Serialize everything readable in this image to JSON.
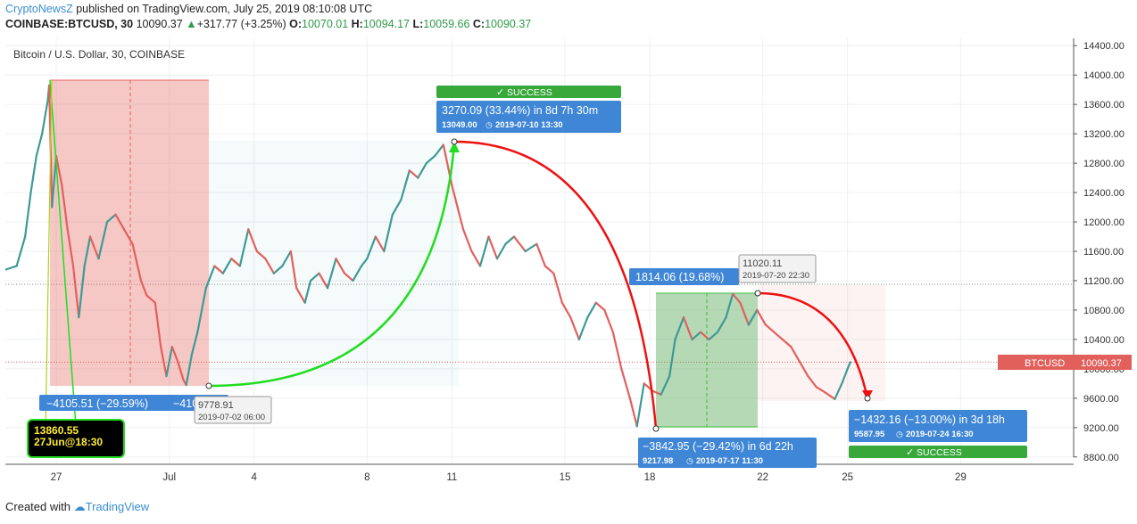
{
  "header": {
    "author": "CryptoNewsZ",
    "published": "published on TradingView.com, July 25, 2019 08:10:08 UTC",
    "symbol": "COINBASE:BTCUSD, 30",
    "last": "10090.37",
    "change": "+317.77 (+3.25%)",
    "o_label": "O:",
    "o_value": "10070.01",
    "h_label": "H:",
    "h_value": "10094.17",
    "l_label": "L:",
    "l_value": "10059.66",
    "c_label": "C:",
    "c_value": "10090.37"
  },
  "colors": {
    "up": "#3e9a96",
    "down": "#e2605c",
    "accent_blue": "#3f86d6",
    "success_green": "#38a83a",
    "arc_green": "#22dd22",
    "arc_red": "#ee1111"
  },
  "chart_data": {
    "type": "line",
    "title": "Bitcoin / U.S. Dollar, 30, COINBASE",
    "ylim": [
      8700,
      14500
    ],
    "y_ticks": [
      8800,
      9200,
      9600,
      10000,
      10400,
      10800,
      11200,
      11600,
      12000,
      12400,
      12800,
      13200,
      13600,
      14000,
      14400
    ],
    "y_tick_labels": [
      "8800.00",
      "9200.00",
      "9600.00",
      "10000.00",
      "10400.00",
      "10800.00",
      "11200.00",
      "11600.00",
      "12000.00",
      "12400.00",
      "12800.00",
      "13200.00",
      "13600.00",
      "14000.00",
      "14400.00"
    ],
    "x_ticks": [
      "27",
      "Jul",
      "4",
      "8",
      "11",
      "15",
      "18",
      "22",
      "25",
      "29"
    ],
    "x_tick_days": [
      27,
      31,
      34,
      38,
      41,
      45,
      48,
      52,
      55,
      59
    ],
    "x_range_days": [
      25.2,
      63.0
    ],
    "series": [
      {
        "points": [
          [
            25.2,
            11350
          ],
          [
            25.6,
            11400
          ],
          [
            25.9,
            11800
          ],
          [
            26.1,
            12400
          ],
          [
            26.3,
            12900
          ],
          [
            26.5,
            13200
          ],
          [
            26.7,
            13650
          ],
          [
            26.75,
            13860
          ],
          [
            26.85,
            12200
          ],
          [
            27.0,
            12900
          ],
          [
            27.2,
            12500
          ],
          [
            27.4,
            11900
          ],
          [
            27.6,
            11400
          ],
          [
            27.8,
            10700
          ],
          [
            28.0,
            11400
          ],
          [
            28.2,
            11800
          ],
          [
            28.5,
            11500
          ],
          [
            28.8,
            12000
          ],
          [
            29.1,
            12100
          ],
          [
            29.4,
            11900
          ],
          [
            29.7,
            11700
          ],
          [
            30.0,
            11200
          ],
          [
            30.2,
            11000
          ],
          [
            30.5,
            10900
          ],
          [
            30.7,
            10300
          ],
          [
            30.9,
            9900
          ],
          [
            31.1,
            10300
          ],
          [
            31.3,
            10100
          ],
          [
            31.5,
            9850
          ],
          [
            31.6,
            9778.91
          ],
          [
            31.8,
            10200
          ],
          [
            32.0,
            10500
          ],
          [
            32.3,
            11100
          ],
          [
            32.6,
            11400
          ],
          [
            32.9,
            11300
          ],
          [
            33.2,
            11500
          ],
          [
            33.5,
            11400
          ],
          [
            33.8,
            11900
          ],
          [
            34.1,
            11600
          ],
          [
            34.4,
            11500
          ],
          [
            34.7,
            11300
          ],
          [
            35.0,
            11400
          ],
          [
            35.3,
            11600
          ],
          [
            35.5,
            11100
          ],
          [
            35.8,
            10900
          ],
          [
            36.0,
            11200
          ],
          [
            36.3,
            11300
          ],
          [
            36.6,
            11100
          ],
          [
            36.9,
            11500
          ],
          [
            37.2,
            11300
          ],
          [
            37.5,
            11200
          ],
          [
            37.8,
            11400
          ],
          [
            38.0,
            11500
          ],
          [
            38.3,
            11800
          ],
          [
            38.6,
            11600
          ],
          [
            38.9,
            12100
          ],
          [
            39.2,
            12300
          ],
          [
            39.5,
            12700
          ],
          [
            39.8,
            12600
          ],
          [
            40.1,
            12800
          ],
          [
            40.4,
            12900
          ],
          [
            40.7,
            13049
          ],
          [
            41.0,
            12500
          ],
          [
            41.2,
            12200
          ],
          [
            41.4,
            11900
          ],
          [
            41.7,
            11600
          ],
          [
            42.0,
            11400
          ],
          [
            42.3,
            11800
          ],
          [
            42.6,
            11500
          ],
          [
            42.9,
            11700
          ],
          [
            43.2,
            11800
          ],
          [
            43.6,
            11600
          ],
          [
            44.0,
            11700
          ],
          [
            44.3,
            11400
          ],
          [
            44.6,
            11300
          ],
          [
            44.9,
            10900
          ],
          [
            45.2,
            10700
          ],
          [
            45.5,
            10400
          ],
          [
            45.8,
            10700
          ],
          [
            46.1,
            10900
          ],
          [
            46.4,
            10800
          ],
          [
            46.7,
            10500
          ],
          [
            47.0,
            10000
          ],
          [
            47.3,
            9600
          ],
          [
            47.55,
            9217.98
          ],
          [
            47.8,
            9800
          ],
          [
            48.1,
            9700
          ],
          [
            48.4,
            9650
          ],
          [
            48.7,
            9900
          ],
          [
            48.9,
            10400
          ],
          [
            49.2,
            10700
          ],
          [
            49.5,
            10400
          ],
          [
            49.8,
            10500
          ],
          [
            50.1,
            10400
          ],
          [
            50.4,
            10500
          ],
          [
            50.7,
            10700
          ],
          [
            50.94,
            11020.11
          ],
          [
            51.2,
            10900
          ],
          [
            51.5,
            10600
          ],
          [
            51.8,
            10800
          ],
          [
            52.1,
            10600
          ],
          [
            52.4,
            10500
          ],
          [
            52.7,
            10400
          ],
          [
            53.0,
            10300
          ],
          [
            53.3,
            10100
          ],
          [
            53.6,
            9900
          ],
          [
            53.9,
            9750
          ],
          [
            54.2,
            9680
          ],
          [
            54.55,
            9587.95
          ],
          [
            54.8,
            9800
          ],
          [
            55.0,
            10000
          ],
          [
            55.1,
            10090.37
          ]
        ]
      }
    ],
    "last_price": 10090.37,
    "last_label": "BTCUSD",
    "last_value_label": "10090.37",
    "ref_line_value": 11150,
    "annotations": {
      "box1_label": "−4105.51 (−29.59%)",
      "box1_tail": "−410",
      "label_low1": "9778.91",
      "label_low1_date": "2019-07-02 06:00",
      "high1_value": "13860.55",
      "high1_date": "27Jun@18:30",
      "success_label": "SUCCESS",
      "top_label": "3270.09 (33.44%) in 8d 7h 30m",
      "top_sub": "13049.00",
      "top_date": "2019-07-10  13:30",
      "mid_label": "1814.06 (19.68%)",
      "high2_value": "11020.11",
      "high2_date": "2019-07-20 22:30",
      "low2_label": "−3842.95 (−29.42%) in 6d 22h",
      "low2_sub": "9217.98",
      "low2_date": "2019-07-17  11:30",
      "low3_label": "−1432.16 (−13.00%) in 3d 18h",
      "low3_sub": "9587.95",
      "low3_date": "2019-07-24  16:30",
      "success2_label": "SUCCESS"
    }
  },
  "footer": {
    "created": "Created with",
    "brand": "TradingView"
  }
}
